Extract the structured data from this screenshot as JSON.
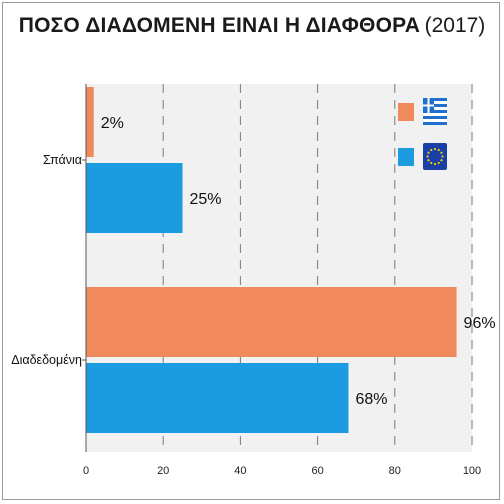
{
  "title": {
    "main": "ΠΟΣΟ ΔΙΑΔΟΜΕΝΗ ΕΙΝΑΙ Η ΔΙΑΦΘΟΡΑ",
    "year": "(2017)"
  },
  "colors": {
    "greece": "#F08A5D",
    "eu": "#1D9BE0",
    "grid": "#7a7a7a",
    "plot_bg": "#f1f1f1"
  },
  "legend": {
    "placement": "top-right",
    "items": [
      {
        "color": "#F08A5D",
        "icon": "greece-flag-icon"
      },
      {
        "color": "#1D9BE0",
        "icon": "eu-flag-icon"
      }
    ]
  },
  "chart_data": {
    "type": "bar",
    "orientation": "horizontal",
    "categories": [
      "Σπάνια",
      "Διαδεδομένη"
    ],
    "series": [
      {
        "values": [
          2,
          96
        ],
        "labels": [
          "2%",
          "96%"
        ],
        "color": "#F08A5D"
      },
      {
        "values": [
          25,
          68
        ],
        "labels": [
          "25%",
          "68%"
        ],
        "color": "#1D9BE0"
      }
    ],
    "xlim": [
      0,
      100
    ],
    "xticks": [
      0,
      20,
      40,
      60,
      80,
      100
    ],
    "grid": "vertical-dashed"
  }
}
